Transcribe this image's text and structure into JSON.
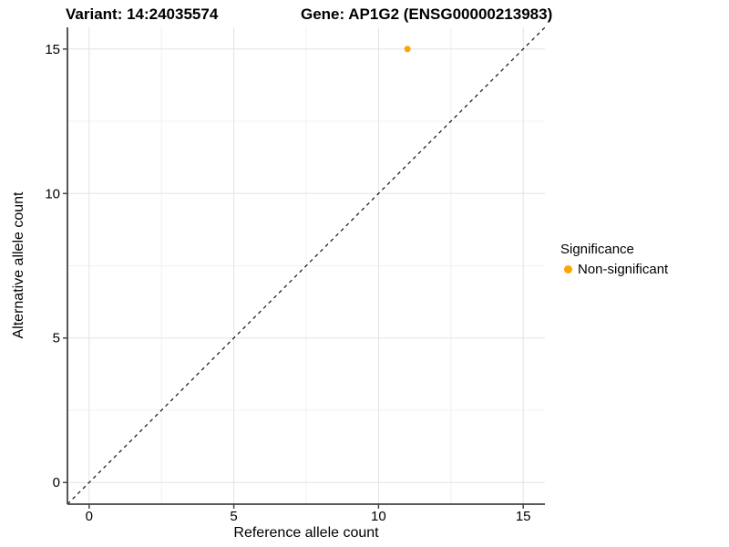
{
  "figure": {
    "title_left": "Variant: 14:24035574",
    "title_right": "Gene: AP1G2 (ENSG00000213983)"
  },
  "chart_data": {
    "type": "scatter",
    "xlabel": "Reference allele count",
    "ylabel": "Alternative allele count",
    "xlim": [
      -0.75,
      15.75
    ],
    "ylim": [
      -0.75,
      15.75
    ],
    "x_ticks": [
      0,
      5,
      10,
      15
    ],
    "y_ticks": [
      0,
      5,
      10,
      15
    ],
    "x_minor_ticks": [
      2.5,
      7.5,
      12.5
    ],
    "y_minor_ticks": [
      2.5,
      7.5,
      12.5
    ],
    "grid": "on",
    "reference_line": {
      "kind": "identity",
      "slope": 1,
      "intercept": 0,
      "style": "dashed",
      "color": "#111111"
    },
    "series": [
      {
        "name": "Non-significant",
        "color": "#FFA500",
        "points": [
          {
            "x": 11,
            "y": 15
          }
        ]
      }
    ],
    "legend": {
      "title": "Significance",
      "position": "right",
      "items": [
        {
          "label": "Non-significant",
          "color": "#FFA500"
        }
      ]
    },
    "colors": {
      "point": "#FFA500",
      "axis_line": "#454545",
      "grid_major": "#e3e3e3",
      "grid_minor": "#f0f0f0",
      "tick_label": "#000000"
    }
  }
}
